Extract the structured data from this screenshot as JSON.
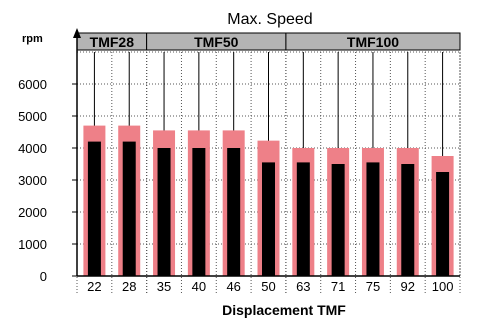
{
  "chart_data": {
    "type": "bar",
    "title": "Max. Speed",
    "ylabel": "rpm",
    "xlabel": "Displacement TMF",
    "ylim": [
      0,
      7000
    ],
    "yticks": [
      0,
      1000,
      2000,
      3000,
      4000,
      5000,
      6000
    ],
    "categories": [
      "22",
      "28",
      "35",
      "40",
      "46",
      "50",
      "63",
      "71",
      "75",
      "92",
      "100"
    ],
    "groups": [
      {
        "label": "TMF28",
        "count": 2
      },
      {
        "label": "TMF50",
        "count": 4
      },
      {
        "label": "TMF100",
        "count": 5
      }
    ],
    "series": [
      {
        "values": [
          4700,
          4700,
          4550,
          4550,
          4550,
          4230,
          4000,
          4000,
          4000,
          4000,
          3750
        ],
        "color": "#ee8088"
      },
      {
        "values": [
          4200,
          4200,
          4000,
          4000,
          4000,
          3550,
          3550,
          3500,
          3550,
          3500,
          3250
        ],
        "color": "#000000"
      }
    ],
    "group_header_color": "#b4b4b4",
    "grid": true
  }
}
